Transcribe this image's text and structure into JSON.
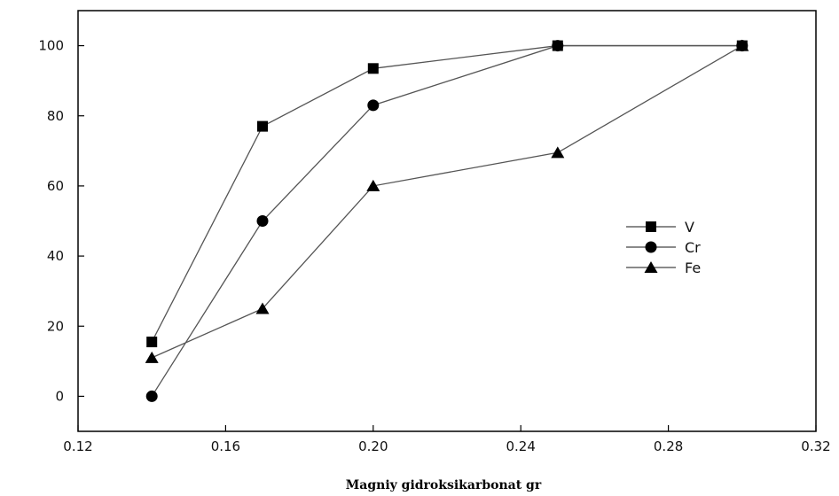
{
  "chart_data": {
    "type": "line",
    "title": "",
    "xlabel": "Magniy gidroksikarbonat gr",
    "ylabel": "",
    "xlim": [
      0.12,
      0.32
    ],
    "ylim": [
      -10,
      110
    ],
    "x_ticks": [
      "0.12",
      "0.16",
      "0.20",
      "0.24",
      "0.28",
      "0.32"
    ],
    "y_ticks": [
      "0",
      "20",
      "40",
      "60",
      "80",
      "100"
    ],
    "grid": false,
    "legend_position": "right",
    "series": [
      {
        "name": "V",
        "marker": "square",
        "x": [
          0.14,
          0.17,
          0.2,
          0.25,
          0.3
        ],
        "values": [
          15.5,
          77,
          93.5,
          100,
          100
        ]
      },
      {
        "name": "Cr",
        "marker": "circle",
        "x": [
          0.14,
          0.17,
          0.2,
          0.25,
          0.3
        ],
        "values": [
          0,
          50,
          83,
          100,
          100
        ]
      },
      {
        "name": "Fe",
        "marker": "triangle",
        "x": [
          0.14,
          0.17,
          0.2,
          0.25,
          0.3
        ],
        "values": [
          11,
          25,
          60,
          69.5,
          100
        ]
      }
    ]
  }
}
